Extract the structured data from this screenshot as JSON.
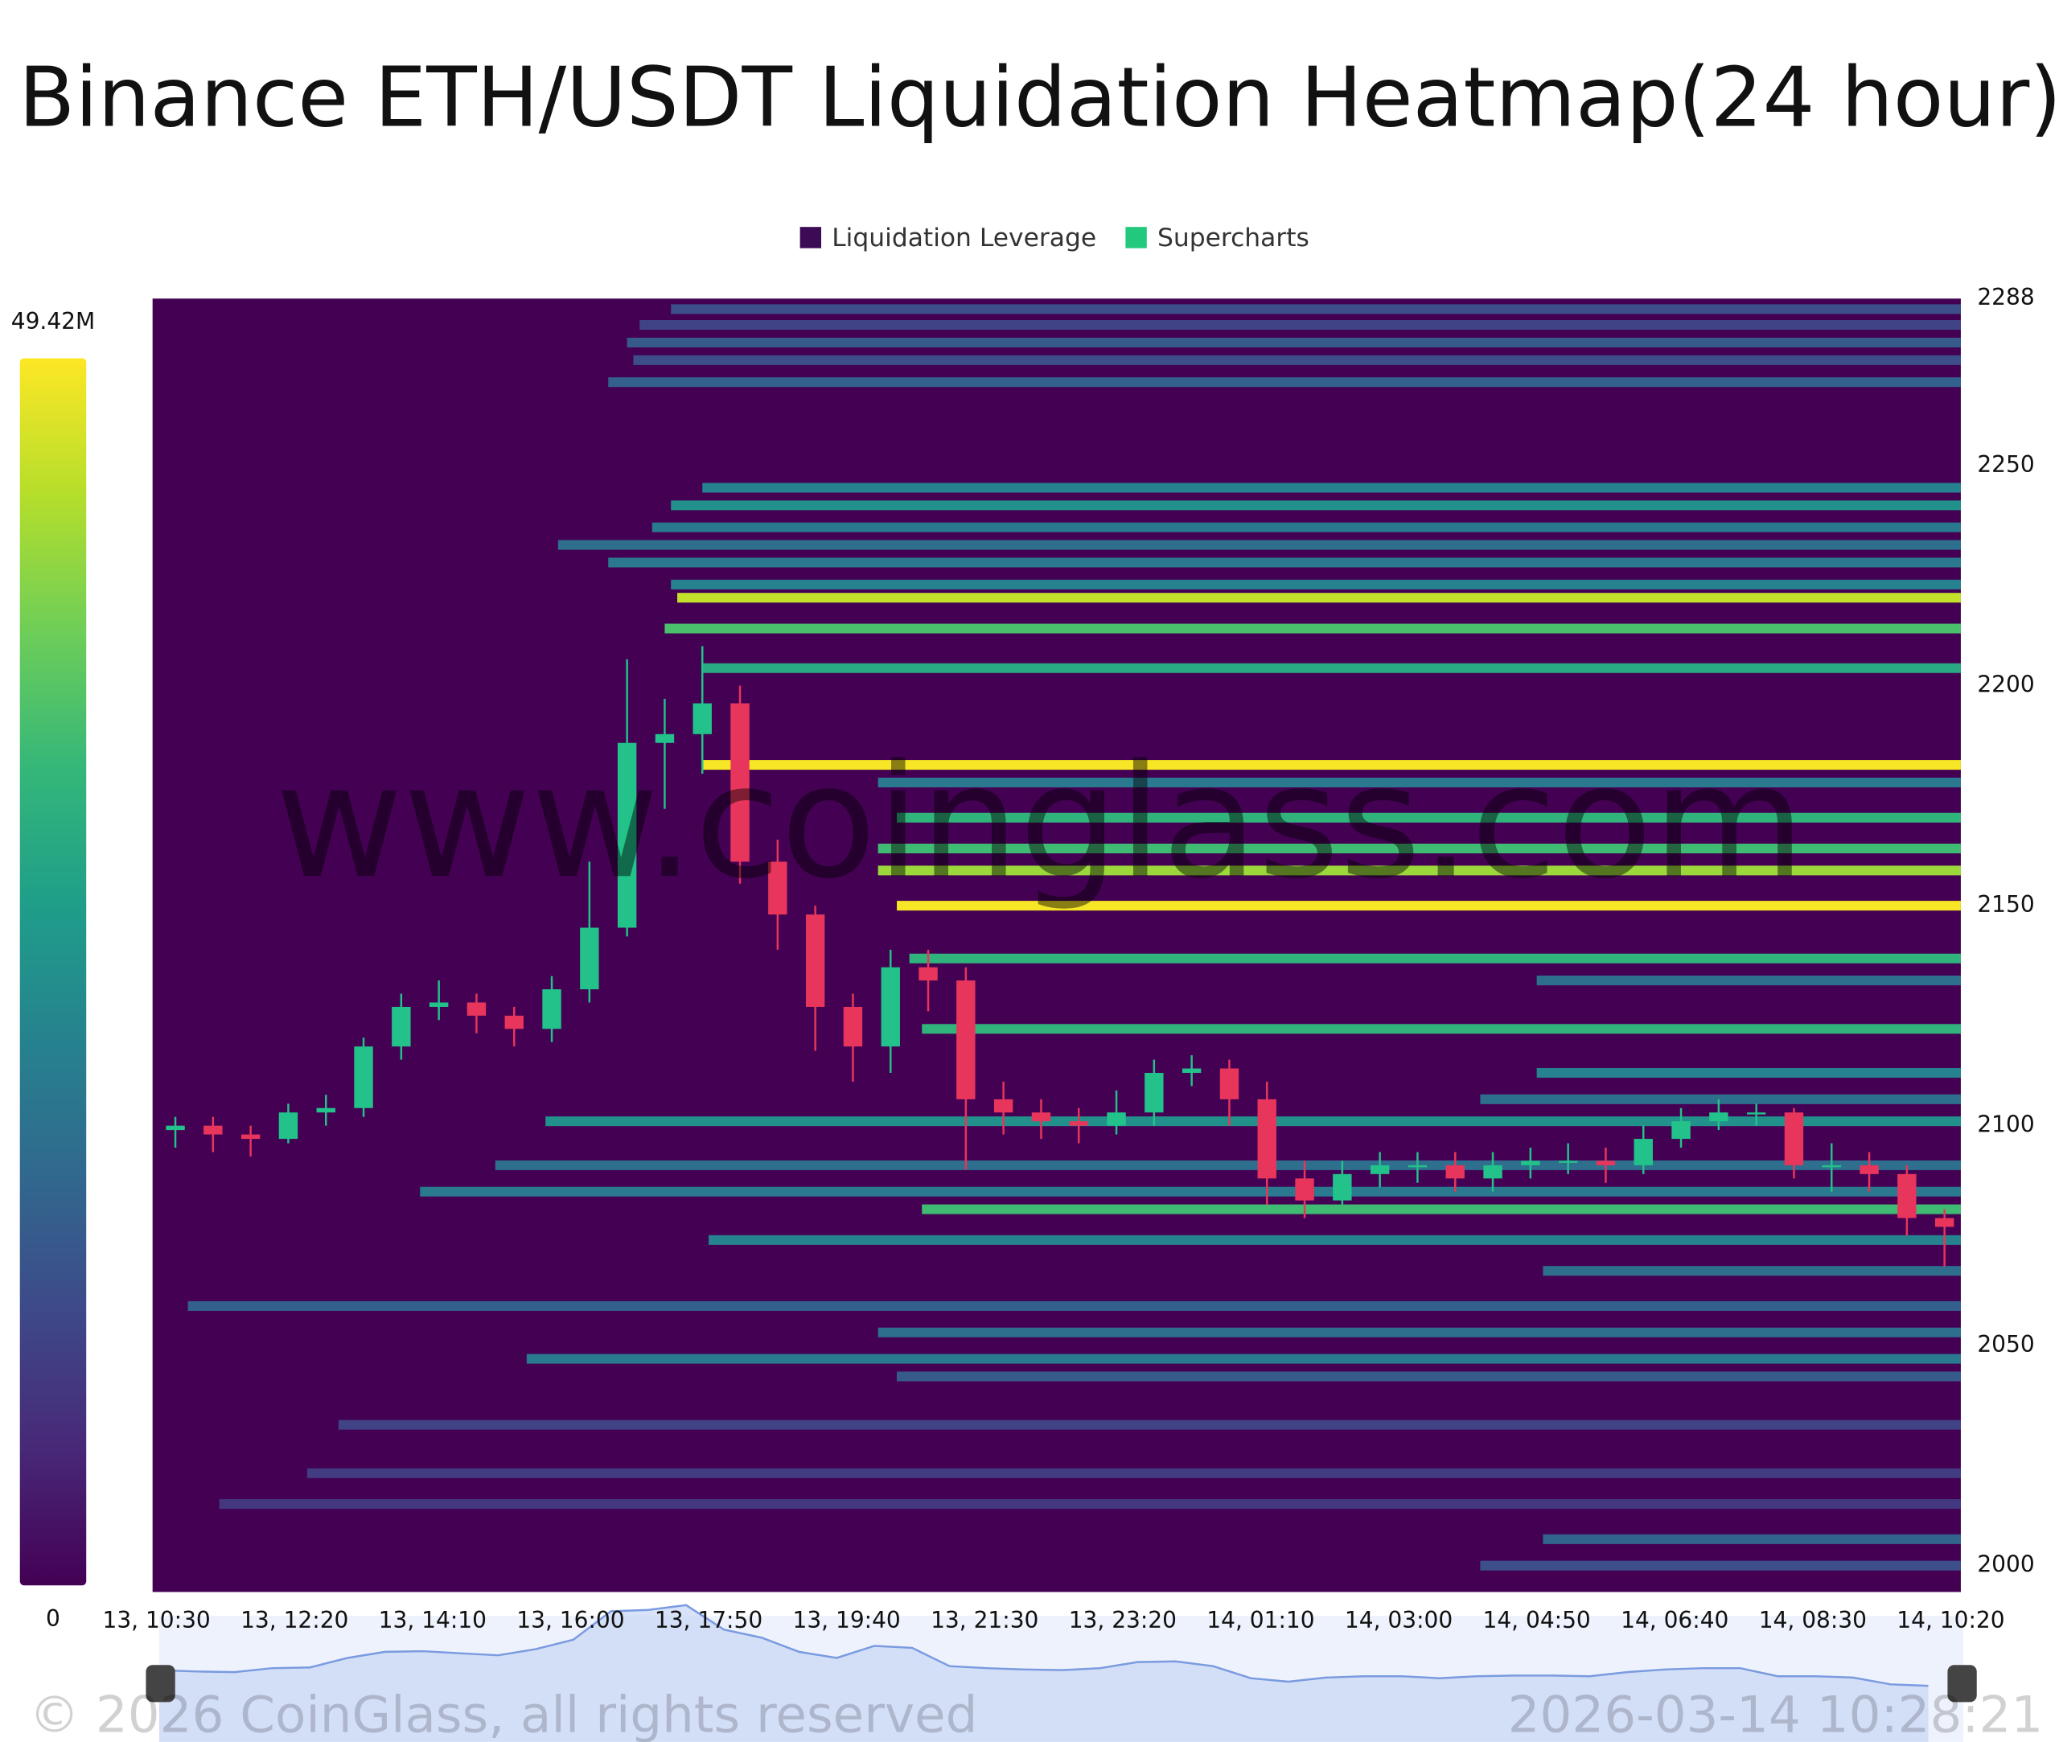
{
  "chart_data": {
    "type": "heatmap",
    "title": "Binance ETH/USDT Liquidation Heatmap(24 hour)",
    "legend": [
      {
        "name": "Liquidation Leverage",
        "color": "#3d0b55"
      },
      {
        "name": "Supercharts",
        "color": "#22c97c"
      }
    ],
    "watermark": "www.coinglass.com",
    "footer": "© 2026 CoinGlass, all rights reserved",
    "timestamp": "2026-03-14 10:28:21",
    "background": "#440154",
    "colorscale": [
      "#440154",
      "#482878",
      "#3e4989",
      "#31688e",
      "#26828e",
      "#1f9e89",
      "#35b779",
      "#6ece58",
      "#b5de2b",
      "#fde725"
    ],
    "colorbar_ticks": [
      0,
      {
        "value": 49.42,
        "label": "49.42M"
      }
    ],
    "ylim": [
      1994,
      2288
    ],
    "yticks": [
      2000,
      2050,
      2100,
      2150,
      2200,
      2250,
      2288
    ],
    "xlim": [
      "13, 10:30",
      "14, 10:28"
    ],
    "xticks": [
      "13, 10:30",
      "13, 12:20",
      "13, 14:10",
      "13, 16:00",
      "13, 17:50",
      "13, 19:40",
      "13, 21:30",
      "13, 23:20",
      "14, 01:10",
      "14, 03:00",
      "14, 04:50",
      "14, 06:40",
      "14, 08:30",
      "14, 10:20"
    ],
    "bands": [
      {
        "price": 2285.6,
        "start": "13, 17:20",
        "value": 12
      },
      {
        "price": 2282,
        "start": "13, 16:55",
        "value": 10
      },
      {
        "price": 2278,
        "start": "13, 16:45",
        "value": 14
      },
      {
        "price": 2274,
        "start": "13, 16:50",
        "value": 12
      },
      {
        "price": 2269,
        "start": "13, 16:30",
        "value": 15
      },
      {
        "price": 2245,
        "start": "13, 17:45",
        "value": 22
      },
      {
        "price": 2241,
        "start": "13, 17:20",
        "value": 25
      },
      {
        "price": 2236,
        "start": "13, 17:05",
        "value": 20
      },
      {
        "price": 2232,
        "start": "13, 15:50",
        "value": 18
      },
      {
        "price": 2228,
        "start": "13, 16:30",
        "value": 20
      },
      {
        "price": 2223,
        "start": "13, 17:20",
        "value": 22
      },
      {
        "price": 2220,
        "start": "13, 17:25",
        "value": 45
      },
      {
        "price": 2213,
        "start": "13, 17:15",
        "value": 35
      },
      {
        "price": 2204,
        "start": "13, 17:45",
        "value": 30
      },
      {
        "price": 2182,
        "start": "13, 17:45",
        "value": 49
      },
      {
        "price": 2178,
        "start": "13, 20:05",
        "value": 20
      },
      {
        "price": 2170,
        "start": "13, 20:20",
        "value": 32
      },
      {
        "price": 2163,
        "start": "13, 20:05",
        "value": 34
      },
      {
        "price": 2158,
        "start": "13, 20:05",
        "value": 42
      },
      {
        "price": 2150,
        "start": "13, 20:20",
        "value": 49
      },
      {
        "price": 2138,
        "start": "13, 20:30",
        "value": 32
      },
      {
        "price": 2133,
        "start": "14, 04:50",
        "value": 18
      },
      {
        "price": 2122,
        "start": "13, 20:40",
        "value": 32
      },
      {
        "price": 2112,
        "start": "14, 04:50",
        "value": 22
      },
      {
        "price": 2106,
        "start": "14, 04:05",
        "value": 18
      },
      {
        "price": 2101,
        "start": "13, 15:40",
        "value": 25
      },
      {
        "price": 2091,
        "start": "13, 15:00",
        "value": 18
      },
      {
        "price": 2085,
        "start": "13, 14:00",
        "value": 20
      },
      {
        "price": 2081,
        "start": "13, 20:40",
        "value": 34
      },
      {
        "price": 2074,
        "start": "13, 17:50",
        "value": 22
      },
      {
        "price": 2067,
        "start": "14, 04:55",
        "value": 18
      },
      {
        "price": 2059,
        "start": "13, 10:55",
        "value": 15
      },
      {
        "price": 2053,
        "start": "13, 20:05",
        "value": 18
      },
      {
        "price": 2047,
        "start": "13, 15:25",
        "value": 20
      },
      {
        "price": 2043,
        "start": "13, 20:20",
        "value": 14
      },
      {
        "price": 2032,
        "start": "13, 12:55",
        "value": 10
      },
      {
        "price": 2021,
        "start": "13, 12:30",
        "value": 9
      },
      {
        "price": 2014,
        "start": "13, 11:20",
        "value": 8
      },
      {
        "price": 2006,
        "start": "14, 04:55",
        "value": 16
      },
      {
        "price": 2000,
        "start": "14, 04:05",
        "value": 12
      }
    ],
    "candles": {
      "up_color": "#22c28a",
      "down_color": "#e8355b",
      "x": [
        "13, 10:30",
        "13, 11:00",
        "13, 11:30",
        "13, 12:00",
        "13, 12:30",
        "13, 13:00",
        "13, 13:30",
        "13, 14:00",
        "13, 14:30",
        "13, 15:00",
        "13, 15:30",
        "13, 16:00",
        "13, 16:30",
        "13, 17:00",
        "13, 17:30",
        "13, 18:00",
        "13, 18:30",
        "13, 19:00",
        "13, 19:30",
        "13, 20:00",
        "13, 20:30",
        "13, 21:00",
        "13, 21:30",
        "13, 22:00",
        "13, 22:30",
        "13, 23:00",
        "13, 23:30",
        "14, 00:00",
        "14, 00:30",
        "14, 01:00",
        "14, 01:30",
        "14, 02:00",
        "14, 02:30",
        "14, 03:00",
        "14, 03:30",
        "14, 04:00",
        "14, 04:30",
        "14, 05:00",
        "14, 05:30",
        "14, 06:00",
        "14, 06:30",
        "14, 07:00",
        "14, 07:30",
        "14, 08:00",
        "14, 08:30",
        "14, 09:00",
        "14, 09:30",
        "14, 10:00"
      ],
      "open": [
        2099,
        2100,
        2098,
        2097,
        2103,
        2104,
        2118,
        2127,
        2128,
        2125,
        2122,
        2131,
        2145,
        2187,
        2189,
        2196,
        2160,
        2148,
        2127,
        2118,
        2136,
        2133,
        2106,
        2103,
        2101,
        2100,
        2103,
        2112,
        2113,
        2106,
        2088,
        2083,
        2089,
        2091,
        2091,
        2088,
        2091,
        2092,
        2092,
        2091,
        2097,
        2101,
        2103,
        2103,
        2091,
        2091,
        2089,
        2079
      ],
      "high": [
        2102,
        2102,
        2100,
        2105,
        2107,
        2120,
        2130,
        2133,
        2130,
        2127,
        2134,
        2160,
        2206,
        2197,
        2209,
        2200,
        2165,
        2150,
        2130,
        2140,
        2140,
        2136,
        2110,
        2106,
        2104,
        2108,
        2115,
        2116,
        2115,
        2110,
        2092,
        2092,
        2094,
        2094,
        2094,
        2094,
        2095,
        2096,
        2095,
        2100,
        2104,
        2106,
        2105,
        2104,
        2096,
        2094,
        2091,
        2081
      ],
      "low": [
        2095,
        2094,
        2093,
        2096,
        2100,
        2102,
        2115,
        2124,
        2121,
        2118,
        2119,
        2128,
        2143,
        2172,
        2180,
        2155,
        2140,
        2117,
        2110,
        2112,
        2126,
        2090,
        2098,
        2097,
        2096,
        2098,
        2100,
        2109,
        2100,
        2082,
        2079,
        2082,
        2086,
        2087,
        2085,
        2085,
        2088,
        2089,
        2087,
        2089,
        2095,
        2099,
        2100,
        2088,
        2085,
        2085,
        2075,
        2068
      ],
      "close": [
        2100,
        2098,
        2097,
        2103,
        2104,
        2118,
        2127,
        2128,
        2125,
        2122,
        2131,
        2145,
        2187,
        2189,
        2196,
        2160,
        2148,
        2127,
        2118,
        2136,
        2133,
        2106,
        2103,
        2101,
        2100,
        2103,
        2112,
        2113,
        2106,
        2088,
        2083,
        2089,
        2091,
        2091,
        2088,
        2091,
        2092,
        2092,
        2091,
        2097,
        2101,
        2103,
        2103,
        2091,
        2091,
        2089,
        2079,
        2077
      ]
    }
  }
}
